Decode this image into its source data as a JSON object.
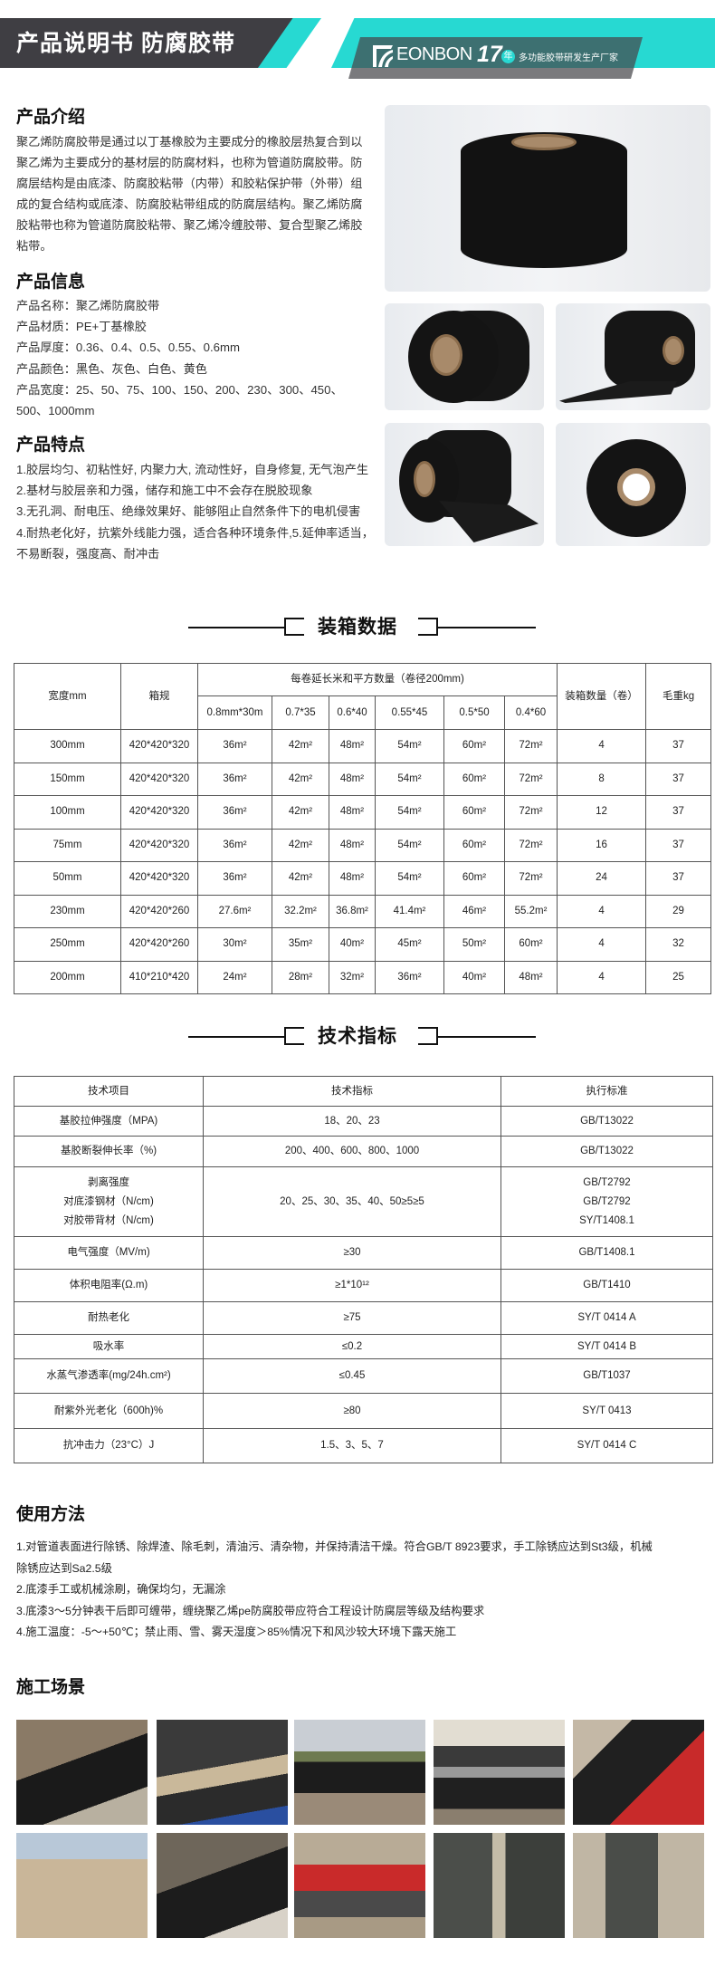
{
  "header": {
    "title": "产品说明书 防腐胶带",
    "brand": "EONBON",
    "years": "17",
    "years_unit": "年",
    "slogan": "多功能胶带研发生产厂家",
    "colors": {
      "dark": "#3f3e43",
      "teal": "#27d9d2"
    }
  },
  "intro": {
    "heading": "产品介绍",
    "text": "聚乙烯防腐胶带是通过以丁基橡胶为主要成分的橡胶层热复合到以聚乙烯为主要成分的基材层的防腐材料，也称为管道防腐胶带。防腐层结构是由底漆、防腐胶粘带（内带）和胶粘保护带（外带）组成的复合结构或底漆、防腐胶粘带组成的防腐层结构。聚乙烯防腐胶粘带也称为管道防腐胶粘带、聚乙烯冷缠胶带、复合型聚乙烯胶粘带。"
  },
  "info": {
    "heading": "产品信息",
    "lines": [
      "产品名称：聚乙烯防腐胶带",
      "产品材质：PE+丁基橡胶",
      "产品厚度：0.36、0.4、0.5、0.55、0.6mm",
      "产品颜色：黑色、灰色、白色、黄色",
      "产品宽度：25、50、75、100、150、200、230、300、450、",
      "500、1000mm"
    ]
  },
  "features": {
    "heading": "产品特点",
    "lines": [
      "1.胶层均匀、初粘性好, 内聚力大, 流动性好，自身修复, 无气泡产生",
      "2.基材与胶层亲和力强，储存和施工中不会存在脱胶现象",
      "3.无孔洞、耐电压、绝缘效果好、能够阻止自然条件下的电机侵害",
      "4.耐热老化好，抗紫外线能力强，适合各种环境条件,5.延伸率适当，",
      "不易断裂，强度高、耐冲击"
    ]
  },
  "packing": {
    "title": "装箱数据",
    "headers": {
      "width": "宽度mm",
      "box": "箱规",
      "group": "每卷延长米和平方数量（卷径200mm)",
      "sub": [
        "0.8mm*30m",
        "0.7*35",
        "0.6*40",
        "0.55*45",
        "0.5*50",
        "0.4*60"
      ],
      "qty": "装箱数量（卷）",
      "weight": "毛重kg"
    },
    "rows": [
      [
        "300mm",
        "420*420*320",
        "36m²",
        "42m²",
        "48m²",
        "54m²",
        "60m²",
        "72m²",
        "4",
        "37"
      ],
      [
        "150mm",
        "420*420*320",
        "36m²",
        "42m²",
        "48m²",
        "54m²",
        "60m²",
        "72m²",
        "8",
        "37"
      ],
      [
        "100mm",
        "420*420*320",
        "36m²",
        "42m²",
        "48m²",
        "54m²",
        "60m²",
        "72m²",
        "12",
        "37"
      ],
      [
        "75mm",
        "420*420*320",
        "36m²",
        "42m²",
        "48m²",
        "54m²",
        "60m²",
        "72m²",
        "16",
        "37"
      ],
      [
        "50mm",
        "420*420*320",
        "36m²",
        "42m²",
        "48m²",
        "54m²",
        "60m²",
        "72m²",
        "24",
        "37"
      ],
      [
        "230mm",
        "420*420*260",
        "27.6m²",
        "32.2m²",
        "36.8m²",
        "41.4m²",
        "46m²",
        "55.2m²",
        "4",
        "29"
      ],
      [
        "250mm",
        "420*420*260",
        "30m²",
        "35m²",
        "40m²",
        "45m²",
        "50m²",
        "60m²",
        "4",
        "32"
      ],
      [
        "200mm",
        "410*210*420",
        "24m²",
        "28m²",
        "32m²",
        "36m²",
        "40m²",
        "48m²",
        "4",
        "25"
      ]
    ]
  },
  "tech": {
    "title": "技术指标",
    "headers": [
      "技术项目",
      "技术指标",
      "执行标准"
    ],
    "rows": [
      [
        "基胶拉伸强度（MPA)",
        "18、20、23",
        "GB/T13022"
      ],
      [
        "基胶断裂伸长率（%)",
        "200、400、600、800、1000",
        "GB/T13022"
      ],
      [
        "剥离强度\n对底漆钢材（N/cm)\n对胶带背材（N/cm)",
        "20、25、30、35、40、50≥5≥5",
        "GB/T2792\nGB/T2792\nSY/T1408.1"
      ],
      [
        "电气强度（MV/m)",
        "≥30",
        "GB/T1408.1"
      ],
      [
        "体积电阻率(Ω.m)",
        "≥1*10¹²",
        "GB/T1410"
      ],
      [
        "耐热老化",
        "≥75",
        "SY/T 0414 A"
      ],
      [
        "吸水率",
        "≤0.2",
        "SY/T 0414 B"
      ],
      [
        "水蒸气渗透率(mg/24h.cm²)",
        "≤0.45",
        "GB/T1037"
      ],
      [
        "耐紫外光老化（600h)%",
        "≥80",
        "SY/T 0413"
      ],
      [
        "抗冲击力（23°C）J",
        "1.5、3、5、7",
        "SY/T 0414 C"
      ]
    ]
  },
  "usage": {
    "heading": "使用方法",
    "lines": [
      "1.对管道表面进行除锈、除焊渣、除毛刺，清油污、清杂物，并保持清洁干燥。符合GB/T 8923要求，手工除锈应达到St3级，机械",
      "除锈应达到Sa2.5级",
      "2.底漆手工或机械涂刷，确保均匀，无漏涂",
      "3.底漆3～5分钟表干后即可缠带，缠绕聚乙烯pe防腐胶带应符合工程设计防腐层等级及结构要求",
      "4.施工温度：-5～+50℃；禁止雨、雪、雾天湿度＞85%情况下和风沙较大环境下露天施工"
    ]
  },
  "scenes": {
    "heading": "施工场景"
  }
}
